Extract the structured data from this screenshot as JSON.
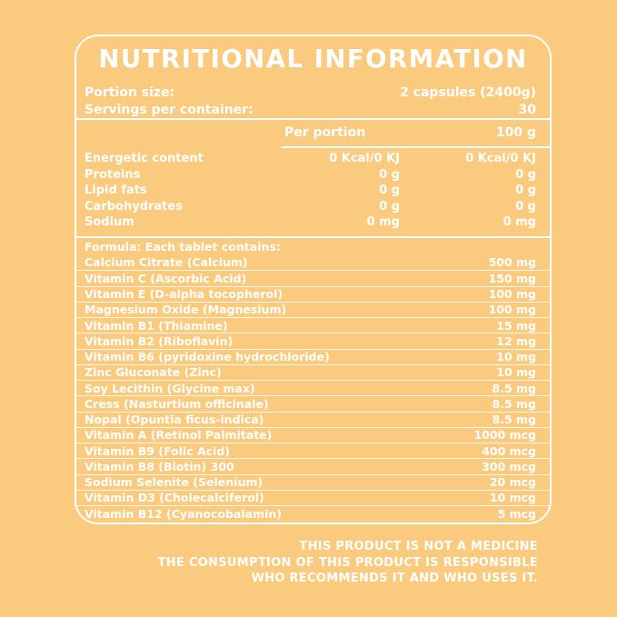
{
  "colors": {
    "background": "#FACA7F",
    "text": "#FFFFFF"
  },
  "title": "NUTRITIONAL INFORMATION",
  "meta": {
    "portion_label": "Portion size:",
    "portion_value": "2 capsules (2400g)",
    "servings_label": "Servings per container:",
    "servings_value": "30"
  },
  "nutrition_table": {
    "col_per_portion": "Per portion",
    "col_100g": "100 g",
    "rows": [
      {
        "label": "Energetic content",
        "per_portion": "0 Kcal/0 KJ",
        "per_100g": "0 Kcal/0 KJ"
      },
      {
        "label": "Proteins",
        "per_portion": "0 g",
        "per_100g": "0 g"
      },
      {
        "label": "Lipid fats",
        "per_portion": "0 g",
        "per_100g": "0 g"
      },
      {
        "label": "Carbohydrates",
        "per_portion": "0 g",
        "per_100g": "0 g"
      },
      {
        "label": "Sodium",
        "per_portion": "0 mg",
        "per_100g": "0 mg"
      }
    ]
  },
  "formula": {
    "heading": "Formula: Each tablet contains:",
    "rows": [
      {
        "label": "Calcium Citrate (Calcium)",
        "value": "500 mg"
      },
      {
        "label": "Vitamin C (Ascorbic Acid)",
        "value": "150 mg"
      },
      {
        "label": "Vitamin E (D-alpha tocopherol)",
        "value": "100 mg"
      },
      {
        "label": "Magnesium Oxide (Magnesium)",
        "value": "100 mg"
      },
      {
        "label": "Vitamin B1 (Thiamine)",
        "value": "15 mg"
      },
      {
        "label": "Vitamin B2 (Riboflavin)",
        "value": "12 mg"
      },
      {
        "label": "Vitamin B6 (pyridoxine hydrochloride)",
        "value": "10 mg"
      },
      {
        "label": "Zinc Gluconate (Zinc)",
        "value": "10 mg"
      },
      {
        "label": "Soy Lecithin (Glycine max)",
        "value": "8.5 mg"
      },
      {
        "label": "Cress (Nasturtium officinale)",
        "value": "8.5 mg"
      },
      {
        "label": "Nopal (Opuntia ficus-indica)",
        "value": "8.5 mg"
      },
      {
        "label": "Vitamin A (Retinol Palmitate)",
        "value": "1000 mcg"
      },
      {
        "label": "Vitamin B9 (Folic Acid)",
        "value": "400 mcg"
      },
      {
        "label": "Vitamin B8 (Biotin) 300",
        "value": "300 mcg"
      },
      {
        "label": "Sodium Selenite (Selenium)",
        "value": "20 mcg"
      },
      {
        "label": "Vitamin D3 (Cholecalciferol)",
        "value": "10 mcg"
      },
      {
        "label": "Vitamin B12 (Cyanocobalamin)",
        "value": "5 mcg"
      }
    ]
  },
  "disclaimer": {
    "lines": [
      "THIS PRODUCT IS NOT A MEDICINE",
      "THE CONSUMPTION OF THIS PRODUCT IS RESPONSIBLE",
      "WHO RECOMMENDS IT AND WHO USES IT."
    ]
  }
}
